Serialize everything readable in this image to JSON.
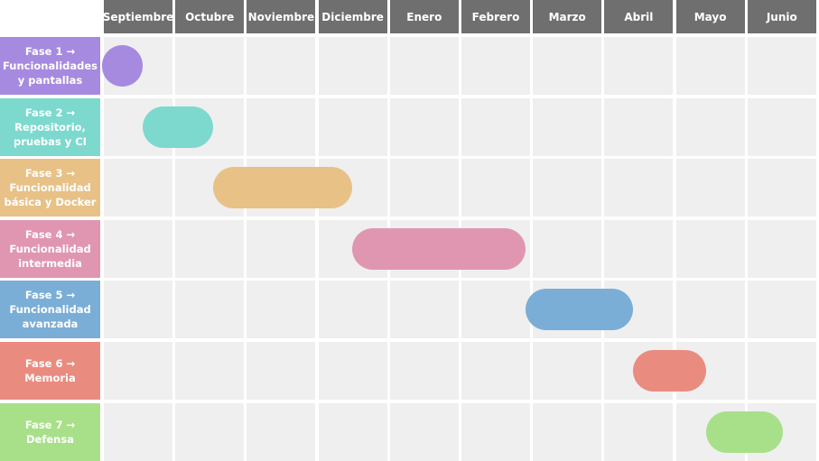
{
  "chart_data": {
    "type": "gantt",
    "months": [
      "Septiembre",
      "Octubre",
      "Noviembre",
      "Diciembre",
      "Enero",
      "Febrero",
      "Marzo",
      "Abril",
      "Mayo",
      "Junio"
    ],
    "tasks": [
      {
        "label_lines": [
          "Fase 1 →",
          "Funcionalidades",
          "y pantallas"
        ],
        "start": 0.0,
        "end": 0.57,
        "color": "#a68ae0"
      },
      {
        "label_lines": [
          "Fase 2 →",
          "Repositorio,",
          "pruebas y CI"
        ],
        "start": 0.57,
        "end": 1.55,
        "color": "#7dd9ce"
      },
      {
        "label_lines": [
          "Fase 3 →",
          "Funcionalidad",
          "básica y Docker"
        ],
        "start": 1.55,
        "end": 3.5,
        "color": "#e8c187"
      },
      {
        "label_lines": [
          "Fase 4 →",
          "Funcionalidad",
          "intermedia"
        ],
        "start": 3.5,
        "end": 5.92,
        "color": "#e096b0"
      },
      {
        "label_lines": [
          "Fase 5 →",
          "Funcionalidad",
          "avanzada"
        ],
        "start": 5.92,
        "end": 7.42,
        "color": "#7aaed6"
      },
      {
        "label_lines": [
          "Fase 6 →",
          "Memoria"
        ],
        "start": 7.42,
        "end": 8.45,
        "color": "#ea8b80"
      },
      {
        "label_lines": [
          "Fase 7 → Defensa"
        ],
        "start": 8.45,
        "end": 9.52,
        "color": "#a8e08a"
      }
    ],
    "colors": {
      "header_bg": "#6f6f6f",
      "cell_bg": "#efefef",
      "gap": "#ffffff"
    }
  }
}
